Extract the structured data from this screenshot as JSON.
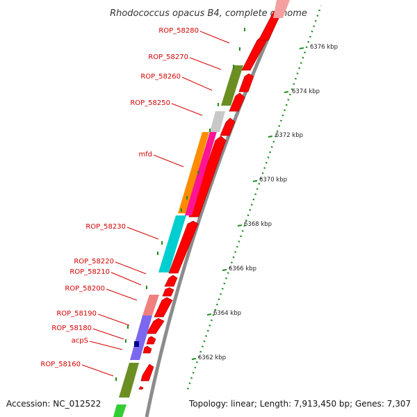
{
  "title": "Rhodococcus opacus B4, complete genome",
  "footer": {
    "accession": "Accession: NC_012522",
    "topology": "Topology: linear; Length: 7,913,450 bp; Genes: 7,307"
  },
  "scale_labels": [
    "6362 kbp",
    "6364 kbp",
    "6366 kbp",
    "6368 kbp",
    "6370 kbp",
    "6372 kbp",
    "6374 kbp",
    "6376 kbp"
  ],
  "gene_labels": [
    "ROP_58280",
    "ROP_58270",
    "ROP_58260",
    "ROP_58250",
    "mfd",
    "ROP_58230",
    "ROP_58220",
    "ROP_58210",
    "ROP_58200",
    "ROP_58190",
    "ROP_58180",
    "acpS",
    "ROP_58160"
  ],
  "colors": {
    "label": "#d40000",
    "gene_red": "#ff0000",
    "olive": "#6b8e23",
    "grey": "#c8c8c8",
    "orange": "#ff8c00",
    "magenta": "#ff1493",
    "cyan": "#00ced1",
    "salmon": "#f08080",
    "slate": "#7b68ee",
    "navy": "#00008b",
    "green": "#32cd32",
    "tick": "#228b22"
  }
}
